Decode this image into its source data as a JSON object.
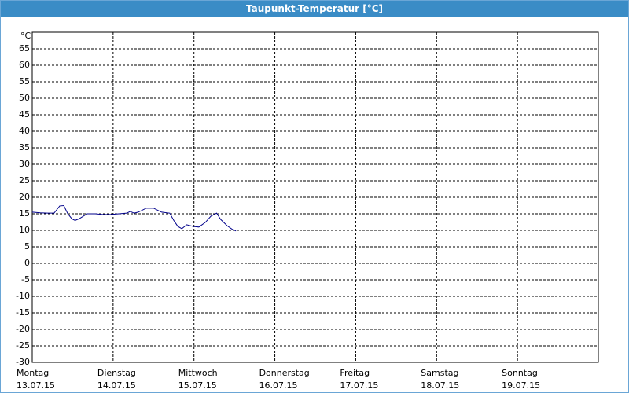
{
  "chart_data": {
    "type": "line",
    "title": "Taupunkt-Temperatur [°C]",
    "y_unit": "°C",
    "ylim": [
      -30,
      70
    ],
    "yticks": [
      -30,
      -25,
      -20,
      -15,
      -10,
      -5,
      0,
      5,
      10,
      15,
      20,
      25,
      30,
      35,
      40,
      45,
      50,
      55,
      60,
      65
    ],
    "xlim": [
      0,
      7
    ],
    "xticks": [
      {
        "value": 0,
        "label": [
          "Montag",
          "13.07.15"
        ]
      },
      {
        "value": 1,
        "label": [
          "Dienstag",
          "14.07.15"
        ]
      },
      {
        "value": 2,
        "label": [
          "Mittwoch",
          "15.07.15"
        ]
      },
      {
        "value": 3,
        "label": [
          "Donnerstag",
          "16.07.15"
        ]
      },
      {
        "value": 4,
        "label": [
          "Freitag",
          "17.07.15"
        ]
      },
      {
        "value": 5,
        "label": [
          "Samstag",
          "18.07.15"
        ]
      },
      {
        "value": 6,
        "label": [
          "Sonntag",
          "19.07.15"
        ]
      }
    ],
    "grid": true,
    "series": [
      {
        "name": "Taupunkt",
        "color": "#00008b",
        "x": [
          0,
          0.1,
          0.19,
          0.27,
          0.34,
          0.39,
          0.44,
          0.49,
          0.53,
          0.58,
          0.68,
          0.78,
          0.87,
          0.97,
          1.07,
          1.17,
          1.21,
          1.26,
          1.31,
          1.41,
          1.5,
          1.6,
          1.7,
          1.75,
          1.8,
          1.85,
          1.91,
          1.99,
          2.06,
          2.14,
          2.21,
          2.28,
          2.33,
          2.41,
          2.48,
          2.52
        ],
        "values": [
          15.5,
          15.3,
          15.2,
          15.2,
          17.4,
          17.5,
          15,
          13.5,
          13,
          13.5,
          15,
          15,
          14.8,
          14.8,
          15,
          15.2,
          15.7,
          15.2,
          15.5,
          16.7,
          16.7,
          15.5,
          15.2,
          13,
          11.2,
          10.5,
          11.7,
          11.2,
          11,
          12.4,
          14.3,
          15.2,
          13.3,
          11.4,
          10.2,
          9.8
        ]
      }
    ]
  }
}
